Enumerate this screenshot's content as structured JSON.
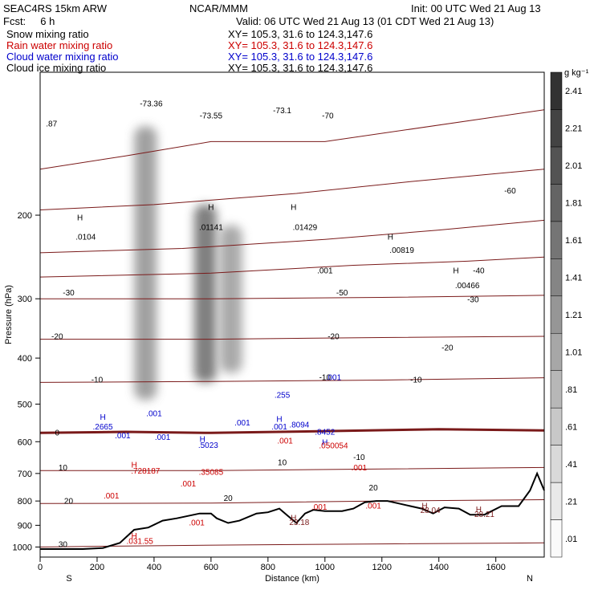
{
  "header": {
    "model": "SEAC4RS 15km ARW",
    "org": "NCAR/MMM",
    "init": "Init: 00 UTC Wed 21 Aug 13",
    "fcst": "Fcst:     6 h",
    "valid": "Valid: 06 UTC Wed 21 Aug 13 (01 CDT Wed 21 Aug 13)",
    "legend": [
      {
        "name": "Snow mixing ratio",
        "xy": "XY= 105.3, 31.6 to 124.3,147.6",
        "color": "#000000"
      },
      {
        "name": "Rain water mixing ratio",
        "xy": "XY= 105.3, 31.6 to 124.3,147.6",
        "color": "#cc0000"
      },
      {
        "name": "Cloud water mixing ratio",
        "xy": "XY= 105.3, 31.6 to 124.3,147.6",
        "color": "#0000cc"
      },
      {
        "name": "Cloud ice mixing ratio",
        "xy": "XY= 105.3, 31.6 to 124.3,147.6",
        "color": "#000000"
      }
    ]
  },
  "chart_data": {
    "type": "heatmap",
    "xlabel": "Distance (km)",
    "ylabel": "Pressure (hPa)",
    "xlim": [
      0,
      1770
    ],
    "ylim": [
      1050,
      100
    ],
    "y_scale": "log",
    "x_ticks": [
      0,
      200,
      400,
      600,
      800,
      1000,
      1200,
      1400,
      1600
    ],
    "y_ticks": [
      200,
      300,
      400,
      500,
      600,
      700,
      800,
      900,
      1000
    ],
    "x_end_labels": {
      "left": "S",
      "right": "N"
    },
    "colorbar": {
      "unit": "g kg⁻¹",
      "levels": [
        ".01",
        ".21",
        ".41",
        ".61",
        ".81",
        "1.01",
        "1.21",
        "1.41",
        "1.61",
        "1.81",
        "2.01",
        "2.21",
        "2.41"
      ]
    },
    "snow_columns": [
      {
        "x": 370,
        "p_top": 130,
        "p_bot": 490,
        "strength": 0.55
      },
      {
        "x": 580,
        "p_top": 190,
        "p_bot": 450,
        "strength": 0.75
      },
      {
        "x": 670,
        "p_top": 210,
        "p_bot": 430,
        "strength": 0.5
      }
    ],
    "temperature_isotherms": [
      {
        "label": "-70",
        "points": [
          [
            0,
            160
          ],
          [
            300,
            150
          ],
          [
            600,
            140
          ],
          [
            1000,
            140
          ],
          [
            1770,
            120
          ]
        ]
      },
      {
        "label": "-60",
        "points": [
          [
            0,
            195
          ],
          [
            400,
            190
          ],
          [
            900,
            180
          ],
          [
            1300,
            170
          ],
          [
            1770,
            160
          ]
        ]
      },
      {
        "label": "-50",
        "points": [
          [
            0,
            240
          ],
          [
            500,
            235
          ],
          [
            1000,
            225
          ],
          [
            1400,
            215
          ],
          [
            1770,
            205
          ]
        ]
      },
      {
        "label": "-40",
        "points": [
          [
            0,
            270
          ],
          [
            600,
            265
          ],
          [
            1100,
            255
          ],
          [
            1500,
            250
          ],
          [
            1770,
            245
          ]
        ]
      },
      {
        "label": "-30",
        "points": [
          [
            0,
            300
          ],
          [
            600,
            300
          ],
          [
            1200,
            298
          ],
          [
            1770,
            295
          ]
        ]
      },
      {
        "label": "-20",
        "points": [
          [
            0,
            365
          ],
          [
            600,
            365
          ],
          [
            1200,
            362
          ],
          [
            1770,
            360
          ]
        ]
      },
      {
        "label": "-10",
        "points": [
          [
            0,
            450
          ],
          [
            600,
            448
          ],
          [
            1200,
            445
          ],
          [
            1770,
            440
          ]
        ]
      },
      {
        "label": "0",
        "points": [
          [
            0,
            575
          ],
          [
            300,
            572
          ],
          [
            600,
            575
          ],
          [
            1000,
            570
          ],
          [
            1400,
            565
          ],
          [
            1770,
            568
          ]
        ],
        "bold": true
      },
      {
        "label": "10",
        "points": [
          [
            0,
            690
          ],
          [
            600,
            690
          ],
          [
            1200,
            685
          ],
          [
            1770,
            680
          ]
        ]
      },
      {
        "label": "20",
        "points": [
          [
            0,
            810
          ],
          [
            600,
            808
          ],
          [
            1200,
            800
          ],
          [
            1770,
            795
          ]
        ]
      },
      {
        "label": "30",
        "points": [
          [
            0,
            1000
          ],
          [
            300,
            995
          ],
          [
            700,
            990
          ],
          [
            1200,
            985
          ],
          [
            1770,
            980
          ]
        ]
      }
    ],
    "ice_points": [
      {
        "label": "-73.36",
        "x": 390,
        "p": 118
      },
      {
        "label": "-73.55",
        "x": 600,
        "p": 125
      },
      {
        "label": "-73.1",
        "x": 850,
        "p": 122
      },
      {
        "label": "-70",
        "x": 1010,
        "p": 125
      },
      {
        "label": "-60",
        "x": 1650,
        "p": 180
      },
      {
        "label": ".87",
        "x": 40,
        "p": 130
      },
      {
        "label": "H",
        "x": 140,
        "p": 205
      },
      {
        "label": ".0104",
        "x": 160,
        "p": 225
      },
      {
        "label": "H",
        "x": 600,
        "p": 195
      },
      {
        "label": ".01141",
        "x": 600,
        "p": 215
      },
      {
        "label": "H",
        "x": 890,
        "p": 195
      },
      {
        "label": ".01429",
        "x": 930,
        "p": 215
      },
      {
        "label": ".001",
        "x": 1000,
        "p": 265
      },
      {
        "label": "H",
        "x": 1230,
        "p": 225
      },
      {
        "label": ".00819",
        "x": 1270,
        "p": 240
      },
      {
        "label": "H",
        "x": 1460,
        "p": 265
      },
      {
        "label": ".00466",
        "x": 1500,
        "p": 285
      },
      {
        "label": "-40",
        "x": 1540,
        "p": 265
      },
      {
        "label": "-30",
        "x": 1520,
        "p": 305
      },
      {
        "label": "-30",
        "x": 100,
        "p": 295
      },
      {
        "label": "-50",
        "x": 1060,
        "p": 295
      },
      {
        "label": "-20",
        "x": 60,
        "p": 365
      },
      {
        "label": "-20",
        "x": 1030,
        "p": 365
      },
      {
        "label": "-20",
        "x": 1430,
        "p": 385
      },
      {
        "label": "-10",
        "x": 200,
        "p": 450
      },
      {
        "label": "-10",
        "x": 1000,
        "p": 445
      },
      {
        "label": "-10",
        "x": 1320,
        "p": 450
      },
      {
        "label": "0",
        "x": 60,
        "p": 582
      },
      {
        "label": "10",
        "x": 80,
        "p": 690
      },
      {
        "label": "10",
        "x": 850,
        "p": 672
      },
      {
        "label": "-10",
        "x": 1120,
        "p": 655
      },
      {
        "label": "20",
        "x": 100,
        "p": 810
      },
      {
        "label": "20",
        "x": 660,
        "p": 800
      },
      {
        "label": "20",
        "x": 1170,
        "p": 760
      },
      {
        "label": "30",
        "x": 80,
        "p": 1000
      }
    ],
    "cloud_water_labels": [
      {
        "label": "H",
        "x": 220,
        "p": 540
      },
      {
        "label": ".2665",
        "x": 220,
        "p": 565
      },
      {
        "label": ".001",
        "x": 290,
        "p": 590
      },
      {
        "label": ".001",
        "x": 400,
        "p": 530
      },
      {
        "label": ".001",
        "x": 430,
        "p": 595
      },
      {
        "label": "H",
        "x": 570,
        "p": 600
      },
      {
        "label": ".5023",
        "x": 590,
        "p": 618
      },
      {
        "label": ".001",
        "x": 710,
        "p": 555
      },
      {
        "label": ".255",
        "x": 850,
        "p": 485
      },
      {
        "label": ".001",
        "x": 1030,
        "p": 445
      },
      {
        "label": "H",
        "x": 840,
        "p": 545
      },
      {
        "label": ".001",
        "x": 840,
        "p": 565
      },
      {
        "label": ".8094",
        "x": 910,
        "p": 560
      },
      {
        "label": ".8452",
        "x": 1000,
        "p": 580
      },
      {
        "label": "H",
        "x": 1000,
        "p": 610
      }
    ],
    "rain_labels": [
      {
        "label": "H",
        "x": 330,
        "p": 680
      },
      {
        "label": ".728187",
        "x": 370,
        "p": 700
      },
      {
        "label": ".35085",
        "x": 600,
        "p": 705
      },
      {
        "label": ".001",
        "x": 520,
        "p": 745
      },
      {
        "label": ".001",
        "x": 250,
        "p": 790
      },
      {
        "label": ".001",
        "x": 550,
        "p": 900
      },
      {
        "label": ".001",
        "x": 860,
        "p": 605
      },
      {
        "label": ".050054",
        "x": 1030,
        "p": 620
      },
      {
        "label": ".001",
        "x": 1120,
        "p": 690
      },
      {
        "label": ".001",
        "x": 980,
        "p": 835
      },
      {
        "label": ".001",
        "x": 1170,
        "p": 830
      },
      {
        "label": "H",
        "x": 330,
        "p": 960
      },
      {
        "label": ".031.55",
        "x": 350,
        "p": 985
      }
    ],
    "terrain_labels": [
      {
        "label": "H",
        "x": 890,
        "p": 880
      },
      {
        "label": "23.18",
        "x": 910,
        "p": 898
      },
      {
        "label": "H",
        "x": 1350,
        "p": 830
      },
      {
        "label": "28.04",
        "x": 1370,
        "p": 848
      },
      {
        "label": "H",
        "x": 1540,
        "p": 845
      },
      {
        "label": "28.21",
        "x": 1560,
        "p": 865
      }
    ],
    "terrain": [
      [
        0,
        1010
      ],
      [
        150,
        1010
      ],
      [
        220,
        1005
      ],
      [
        280,
        980
      ],
      [
        330,
        920
      ],
      [
        380,
        910
      ],
      [
        430,
        880
      ],
      [
        480,
        870
      ],
      [
        520,
        860
      ],
      [
        560,
        850
      ],
      [
        600,
        850
      ],
      [
        620,
        870
      ],
      [
        660,
        890
      ],
      [
        700,
        880
      ],
      [
        760,
        850
      ],
      [
        800,
        845
      ],
      [
        840,
        830
      ],
      [
        870,
        860
      ],
      [
        900,
        890
      ],
      [
        930,
        850
      ],
      [
        960,
        835
      ],
      [
        1000,
        840
      ],
      [
        1060,
        840
      ],
      [
        1100,
        830
      ],
      [
        1140,
        805
      ],
      [
        1180,
        800
      ],
      [
        1220,
        800
      ],
      [
        1260,
        810
      ],
      [
        1300,
        820
      ],
      [
        1340,
        830
      ],
      [
        1380,
        850
      ],
      [
        1420,
        825
      ],
      [
        1470,
        830
      ],
      [
        1510,
        855
      ],
      [
        1560,
        855
      ],
      [
        1620,
        820
      ],
      [
        1680,
        820
      ],
      [
        1720,
        760
      ],
      [
        1745,
        700
      ],
      [
        1770,
        760
      ]
    ]
  }
}
